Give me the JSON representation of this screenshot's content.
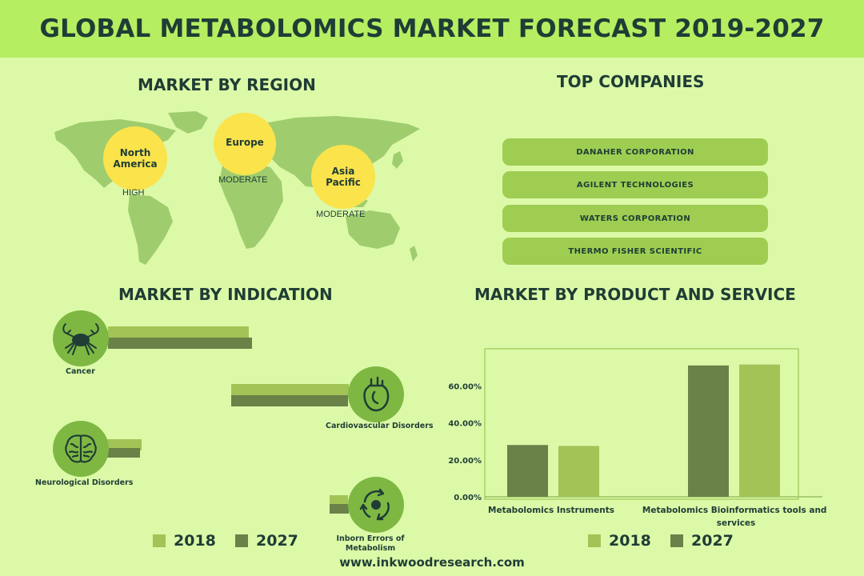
{
  "title": "GLOBAL METABOLOMICS MARKET FORECAST 2019-2027",
  "region": {
    "title": "MARKET BY REGION",
    "items": [
      {
        "name": "North\nAmerica",
        "level": "HIGH"
      },
      {
        "name": "Europe",
        "level": "MODERATE"
      },
      {
        "name": "Asia\nPacific",
        "level": "MODERATE"
      }
    ]
  },
  "companies": {
    "title": "TOP COMPANIES",
    "items": [
      "DANAHER CORPORATION",
      "AGILENT TECHNOLOGIES",
      "WATERS CORPORATION",
      "THERMO FISHER SCIENTIFIC"
    ]
  },
  "indication": {
    "title": "MARKET BY INDICATION",
    "icons": [
      "crab-icon",
      "heart-icon",
      "brain-icon",
      "cycle-icon"
    ]
  },
  "product": {
    "title": "MARKET BY PRODUCT AND SERVICE"
  },
  "colors": {
    "y2018": "#a2c457",
    "y2027": "#6a8148",
    "accent": "#7eb843"
  },
  "legend": [
    "2018",
    "2027"
  ],
  "footer": "www.inkwoodresearch.com",
  "chart_data": [
    {
      "type": "bar",
      "orientation": "horizontal",
      "categories": [
        "Cancer",
        "Cardiovascular Disorders",
        "Neurological Disorders",
        "Inborn Errors of\nMetabolism"
      ],
      "series": [
        {
          "name": "2018",
          "values": [
            176,
            147,
            43,
            23
          ]
        },
        {
          "name": "2027",
          "values": [
            180,
            146,
            41,
            24
          ]
        }
      ]
    },
    {
      "type": "bar",
      "categories": [
        "Metabolomics Instruments",
        "Metabolomics Bioinformatics tools and services"
      ],
      "series": [
        {
          "name": "2018",
          "values": [
            27.5,
            71.5
          ]
        },
        {
          "name": "2027",
          "values": [
            28.0,
            71.0
          ]
        }
      ],
      "yticks": [
        "0.00%",
        "20.00%",
        "40.00%",
        "60.00%"
      ],
      "ylim": [
        0,
        80
      ]
    }
  ]
}
